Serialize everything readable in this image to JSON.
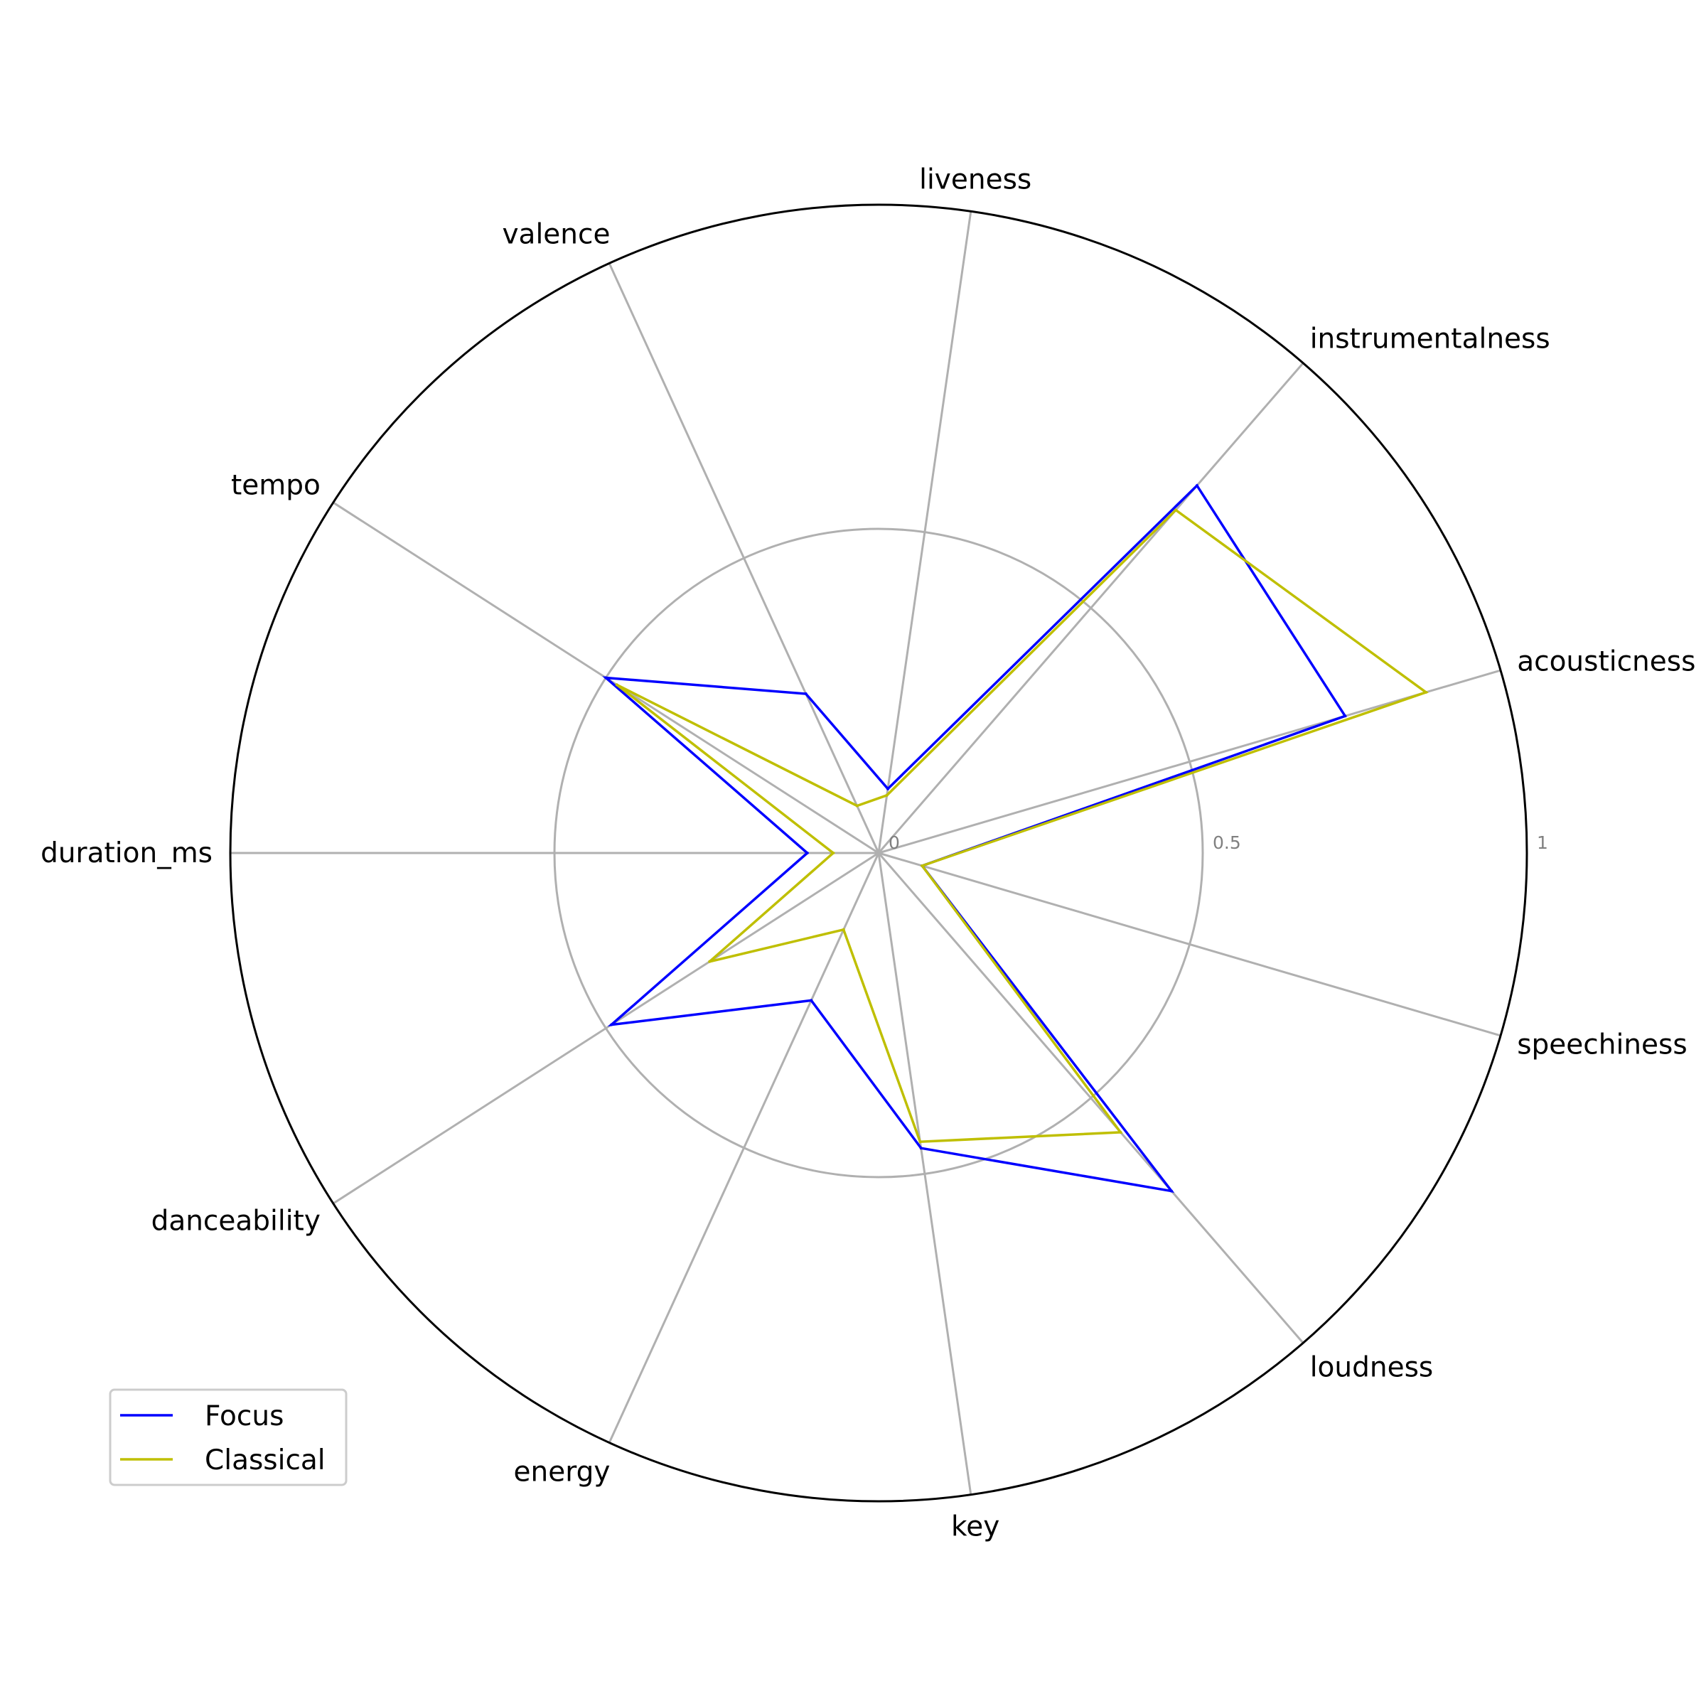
{
  "chart_data": {
    "type": "radar",
    "axes": [
      "acousticness",
      "instrumentalness",
      "liveness",
      "valence",
      "tempo",
      "duration_ms",
      "danceability",
      "energy",
      "key",
      "loudness",
      "speechiness"
    ],
    "rlim": [
      0,
      1
    ],
    "r_ticks": [
      {
        "value": 0,
        "label": "0"
      },
      {
        "value": 0.5,
        "label": "0.5"
      },
      {
        "value": 1,
        "label": "1"
      }
    ],
    "grid": true,
    "legend": "lower-left",
    "series": [
      {
        "name": "Focus",
        "color": "#0000ff",
        "values": [
          0.75,
          0.75,
          0.1,
          0.27,
          0.5,
          0.11,
          0.49,
          0.25,
          0.46,
          0.69,
          0.07
        ]
      },
      {
        "name": "Classical",
        "color": "#bfbf00",
        "values": [
          0.88,
          0.7,
          0.09,
          0.08,
          0.48,
          0.07,
          0.31,
          0.13,
          0.45,
          0.57,
          0.07
        ]
      }
    ],
    "colors": {
      "outer_circle": "#000000",
      "grid": "#b0b0b0",
      "tick_text": "#808080"
    }
  }
}
